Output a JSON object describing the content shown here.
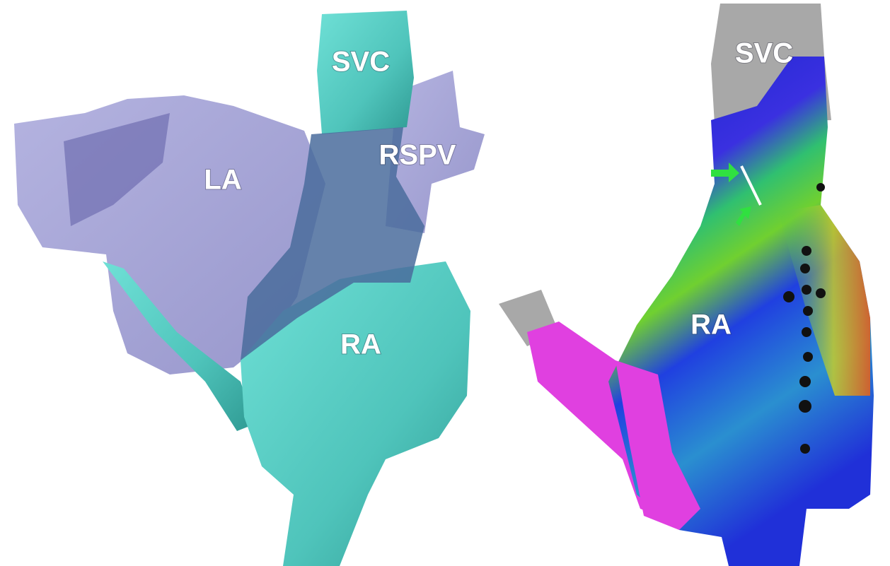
{
  "left_panel": {
    "labels": [
      "SVC",
      "LA",
      "RSPV",
      "RA"
    ]
  },
  "right_panel": {
    "labels": [
      "SVC",
      "RA"
    ]
  }
}
